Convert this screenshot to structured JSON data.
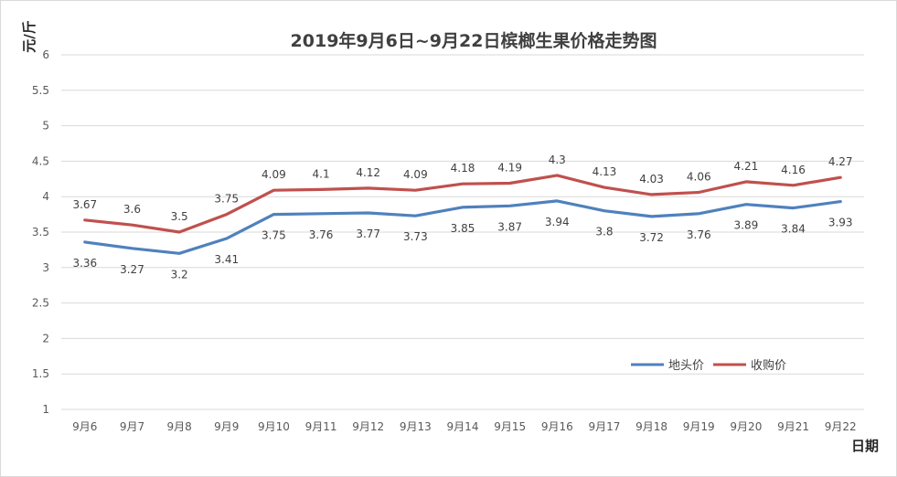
{
  "chart_data": {
    "type": "line",
    "title": "2019年9月6日~9月22日槟榔生果价格走势图",
    "xlabel": "日期",
    "ylabel": "元/斤",
    "ylim": [
      1,
      6
    ],
    "yticks": [
      "1",
      "1.5",
      "2",
      "2.5",
      "3",
      "3.5",
      "4",
      "4.5",
      "5",
      "5.5",
      "6"
    ],
    "grid": true,
    "legend_position": "right",
    "categories": [
      "9月6",
      "9月7",
      "9月8",
      "9月9",
      "9月10",
      "9月11",
      "9月12",
      "9月13",
      "9月14",
      "9月15",
      "9月16",
      "9月17",
      "9月18",
      "9月19",
      "9月20",
      "9月21",
      "9月22"
    ],
    "series": [
      {
        "name": "地头价",
        "color": "#4f81bd",
        "label_position": "below",
        "values": [
          3.36,
          3.27,
          3.2,
          3.41,
          3.75,
          3.76,
          3.77,
          3.73,
          3.85,
          3.87,
          3.94,
          3.8,
          3.72,
          3.76,
          3.89,
          3.84,
          3.93
        ]
      },
      {
        "name": "收购价",
        "color": "#c0504d",
        "label_position": "above",
        "values": [
          3.67,
          3.6,
          3.5,
          3.75,
          4.09,
          4.1,
          4.12,
          4.09,
          4.18,
          4.19,
          4.3,
          4.13,
          4.03,
          4.06,
          4.21,
          4.16,
          4.27
        ]
      }
    ]
  }
}
